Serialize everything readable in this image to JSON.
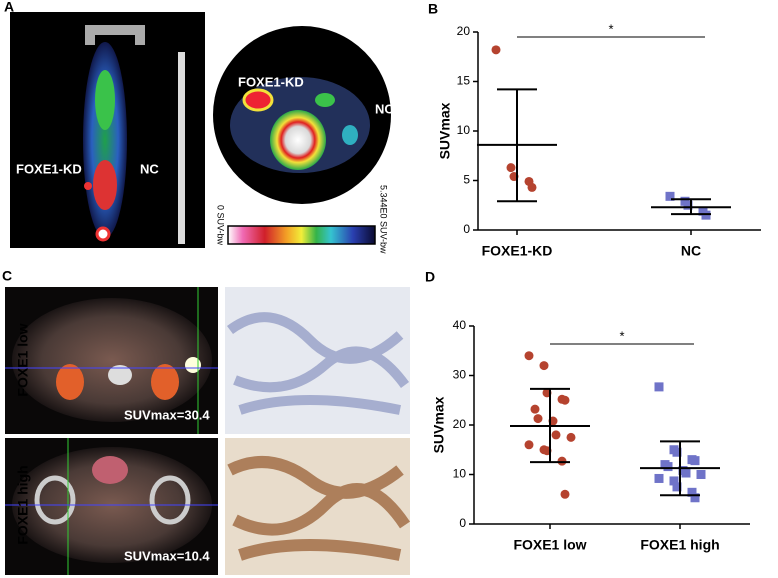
{
  "panel_labels": [
    "A",
    "B",
    "C",
    "D"
  ],
  "panel_a": {
    "coronal_labels": [
      "FOXE1-KD",
      "NC"
    ],
    "axial_labels": [
      "FOXE1-KD",
      "NC"
    ],
    "colorbar_min_label": "0 SUV-bw",
    "colorbar_max_label": "5.344E0 SUV-bw"
  },
  "panel_c": {
    "row_labels": [
      "FOXE1 low",
      "FOXE1 high"
    ],
    "annotations": [
      "SUVmax=30.4",
      "SUVmax=10.4"
    ]
  },
  "chart_data": [
    {
      "type": "strip",
      "ylabel": "SUVmax",
      "categories": [
        "FOXE1-KD",
        "NC"
      ],
      "points": [
        [
          18.2,
          6.3,
          5.4,
          4.9,
          4.3
        ],
        [
          3.4,
          2.9,
          2.5,
          1.9,
          1.5
        ]
      ],
      "mean": [
        8.6,
        2.3
      ],
      "error_upper": [
        14.2,
        3.1
      ],
      "error_lower": [
        2.9,
        1.6
      ],
      "colors": [
        "#b5432f",
        "#6f73c8"
      ],
      "markers": [
        "circle",
        "square"
      ],
      "significance": "*",
      "ylim": [
        0,
        20
      ],
      "yticks": [
        0,
        5,
        10,
        15,
        20
      ]
    },
    {
      "type": "strip",
      "ylabel": "SUVmax",
      "categories": [
        "FOXE1 low",
        "FOXE1 high"
      ],
      "points": [
        [
          34.0,
          32.0,
          26.5,
          25.2,
          25.0,
          23.2,
          21.3,
          20.8,
          18.0,
          17.5,
          16.0,
          15.0,
          14.8,
          12.7,
          6.0
        ],
        [
          27.7,
          15.0,
          14.5,
          13.0,
          12.8,
          12.0,
          11.6,
          10.8,
          10.3,
          10.0,
          9.2,
          8.7,
          7.5,
          6.4,
          5.3
        ]
      ],
      "mean": [
        19.8,
        11.3
      ],
      "error_upper": [
        27.3,
        16.7
      ],
      "error_lower": [
        12.5,
        5.8
      ],
      "colors": [
        "#b5432f",
        "#6f73c8"
      ],
      "markers": [
        "circle",
        "square"
      ],
      "significance": "*",
      "ylim": [
        0,
        40
      ],
      "yticks": [
        0,
        10,
        20,
        30,
        40
      ]
    }
  ]
}
